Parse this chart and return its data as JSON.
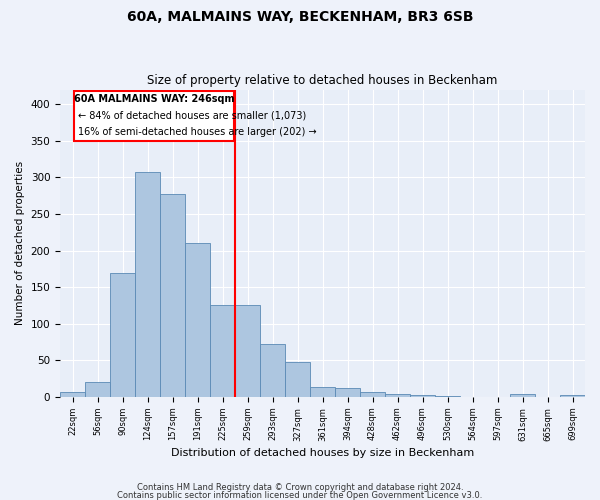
{
  "title": "60A, MALMAINS WAY, BECKENHAM, BR3 6SB",
  "subtitle": "Size of property relative to detached houses in Beckenham",
  "xlabel": "Distribution of detached houses by size in Beckenham",
  "ylabel": "Number of detached properties",
  "bar_color": "#adc6e0",
  "bar_edge_color": "#5a8ab5",
  "background_color": "#e8eef8",
  "grid_color": "#ffffff",
  "bin_labels": [
    "22sqm",
    "56sqm",
    "90sqm",
    "124sqm",
    "157sqm",
    "191sqm",
    "225sqm",
    "259sqm",
    "293sqm",
    "327sqm",
    "361sqm",
    "394sqm",
    "428sqm",
    "462sqm",
    "496sqm",
    "530sqm",
    "564sqm",
    "597sqm",
    "631sqm",
    "665sqm",
    "699sqm"
  ],
  "bar_values": [
    7,
    20,
    170,
    308,
    277,
    210,
    125,
    125,
    72,
    48,
    14,
    12,
    7,
    4,
    2,
    1,
    0,
    0,
    4,
    0,
    3
  ],
  "vline_x": 6.5,
  "annotation_line1": "60A MALMAINS WAY: 246sqm",
  "annotation_line2": "← 84% of detached houses are smaller (1,073)",
  "annotation_line3": "16% of semi-detached houses are larger (202) →",
  "ylim": [
    0,
    420
  ],
  "yticks": [
    0,
    50,
    100,
    150,
    200,
    250,
    300,
    350,
    400
  ],
  "footer1": "Contains HM Land Registry data © Crown copyright and database right 2024.",
  "footer2": "Contains public sector information licensed under the Open Government Licence v3.0."
}
